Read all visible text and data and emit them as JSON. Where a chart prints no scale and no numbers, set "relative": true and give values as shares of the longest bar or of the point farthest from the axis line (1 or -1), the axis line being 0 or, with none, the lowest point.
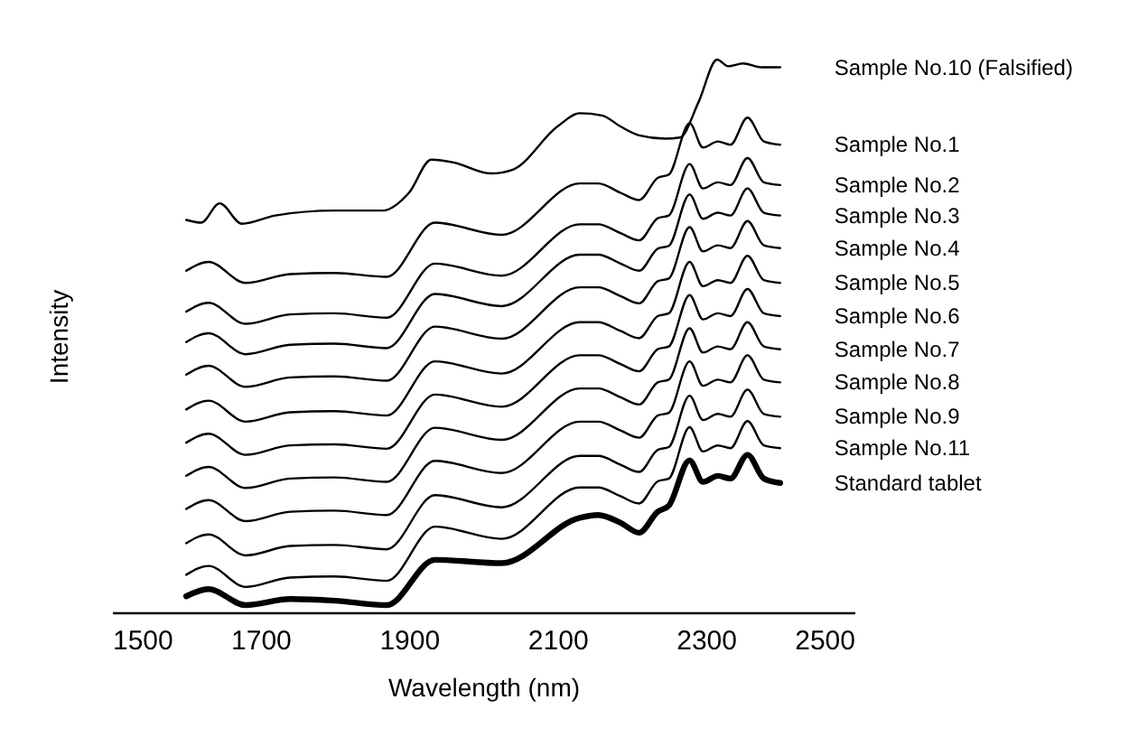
{
  "chart_data": {
    "type": "line",
    "relative": true,
    "xlabel": "Wavelength (nm)",
    "ylabel": "Intensity",
    "xlim": [
      1500,
      2500
    ],
    "xticks": [
      1500,
      1700,
      1900,
      2100,
      2300,
      2500
    ],
    "grid": false,
    "legend": false,
    "marker": "none",
    "line_style": "solid",
    "x": [
      1600,
      1630,
      1680,
      1740,
      1800,
      1870,
      1935,
      2025,
      2130,
      2155,
      2185,
      2210,
      2235,
      2250,
      2278,
      2296,
      2316,
      2333,
      2356,
      2378,
      2400
    ],
    "series": [
      {
        "name": "Sample No.10 (Falsified)",
        "color": "#000000",
        "x": [
          1600,
          1620,
          1645,
          1675,
          1720,
          1800,
          1865,
          1900,
          1930,
          1960,
          2010,
          2040,
          2100,
          2130,
          2160,
          2185,
          2210,
          2245,
          2265,
          2290,
          2315,
          2330,
          2350,
          2375,
          2400
        ],
        "values": [
          0.71,
          0.705,
          0.74,
          0.703,
          0.718,
          0.727,
          0.727,
          0.759,
          0.819,
          0.814,
          0.794,
          0.801,
          0.879,
          0.903,
          0.899,
          0.879,
          0.863,
          0.857,
          0.859,
          0.923,
          1.0,
          0.988,
          0.993,
          0.986,
          0.986
        ]
      },
      {
        "name": "Sample No.1",
        "color": "#000000",
        "values": [
          0.618,
          0.634,
          0.596,
          0.612,
          0.614,
          0.607,
          0.705,
          0.683,
          0.776,
          0.776,
          0.759,
          0.746,
          0.786,
          0.792,
          0.885,
          0.841,
          0.852,
          0.846,
          0.895,
          0.852,
          0.846
        ]
      },
      {
        "name": "Sample No.2",
        "color": "#000000",
        "values": [
          0.544,
          0.56,
          0.522,
          0.539,
          0.541,
          0.533,
          0.631,
          0.609,
          0.702,
          0.702,
          0.686,
          0.673,
          0.713,
          0.718,
          0.811,
          0.767,
          0.778,
          0.773,
          0.822,
          0.778,
          0.773
        ]
      },
      {
        "name": "Sample No.3",
        "color": "#000000",
        "values": [
          0.489,
          0.505,
          0.467,
          0.484,
          0.486,
          0.478,
          0.576,
          0.554,
          0.647,
          0.647,
          0.631,
          0.618,
          0.658,
          0.663,
          0.756,
          0.712,
          0.723,
          0.718,
          0.767,
          0.723,
          0.718
        ]
      },
      {
        "name": "Sample No.4",
        "color": "#000000",
        "values": [
          0.43,
          0.446,
          0.408,
          0.425,
          0.427,
          0.419,
          0.517,
          0.495,
          0.588,
          0.588,
          0.572,
          0.559,
          0.599,
          0.604,
          0.697,
          0.653,
          0.664,
          0.659,
          0.708,
          0.664,
          0.659
        ]
      },
      {
        "name": "Sample No.5",
        "color": "#000000",
        "values": [
          0.367,
          0.383,
          0.345,
          0.362,
          0.364,
          0.356,
          0.454,
          0.432,
          0.525,
          0.525,
          0.509,
          0.496,
          0.536,
          0.541,
          0.634,
          0.59,
          0.601,
          0.596,
          0.645,
          0.601,
          0.596
        ]
      },
      {
        "name": "Sample No.6",
        "color": "#000000",
        "values": [
          0.307,
          0.323,
          0.285,
          0.302,
          0.304,
          0.296,
          0.394,
          0.372,
          0.465,
          0.465,
          0.449,
          0.436,
          0.476,
          0.481,
          0.574,
          0.53,
          0.541,
          0.536,
          0.585,
          0.541,
          0.536
        ]
      },
      {
        "name": "Sample No.7",
        "color": "#000000",
        "values": [
          0.247,
          0.263,
          0.225,
          0.242,
          0.244,
          0.236,
          0.334,
          0.312,
          0.405,
          0.405,
          0.389,
          0.376,
          0.416,
          0.421,
          0.514,
          0.47,
          0.481,
          0.476,
          0.525,
          0.481,
          0.476
        ]
      },
      {
        "name": "Sample No.8",
        "color": "#000000",
        "values": [
          0.187,
          0.203,
          0.165,
          0.182,
          0.184,
          0.176,
          0.274,
          0.252,
          0.345,
          0.345,
          0.329,
          0.316,
          0.356,
          0.361,
          0.454,
          0.41,
          0.421,
          0.416,
          0.465,
          0.421,
          0.416
        ]
      },
      {
        "name": "Sample No.9",
        "color": "#000000",
        "values": [
          0.125,
          0.141,
          0.103,
          0.12,
          0.122,
          0.114,
          0.212,
          0.19,
          0.283,
          0.283,
          0.267,
          0.254,
          0.294,
          0.299,
          0.392,
          0.348,
          0.359,
          0.354,
          0.403,
          0.359,
          0.354
        ]
      },
      {
        "name": "Sample No.11",
        "color": "#000000",
        "values": [
          0.068,
          0.084,
          0.046,
          0.063,
          0.065,
          0.057,
          0.155,
          0.133,
          0.226,
          0.226,
          0.21,
          0.197,
          0.237,
          0.242,
          0.335,
          0.291,
          0.302,
          0.297,
          0.346,
          0.302,
          0.297
        ]
      },
      {
        "name": "Standard tablet",
        "color": "#000000",
        "values": [
          0.029,
          0.042,
          0.013,
          0.024,
          0.021,
          0.013,
          0.095,
          0.089,
          0.171,
          0.176,
          0.162,
          0.144,
          0.182,
          0.193,
          0.275,
          0.236,
          0.247,
          0.242,
          0.285,
          0.242,
          0.234
        ]
      }
    ]
  }
}
